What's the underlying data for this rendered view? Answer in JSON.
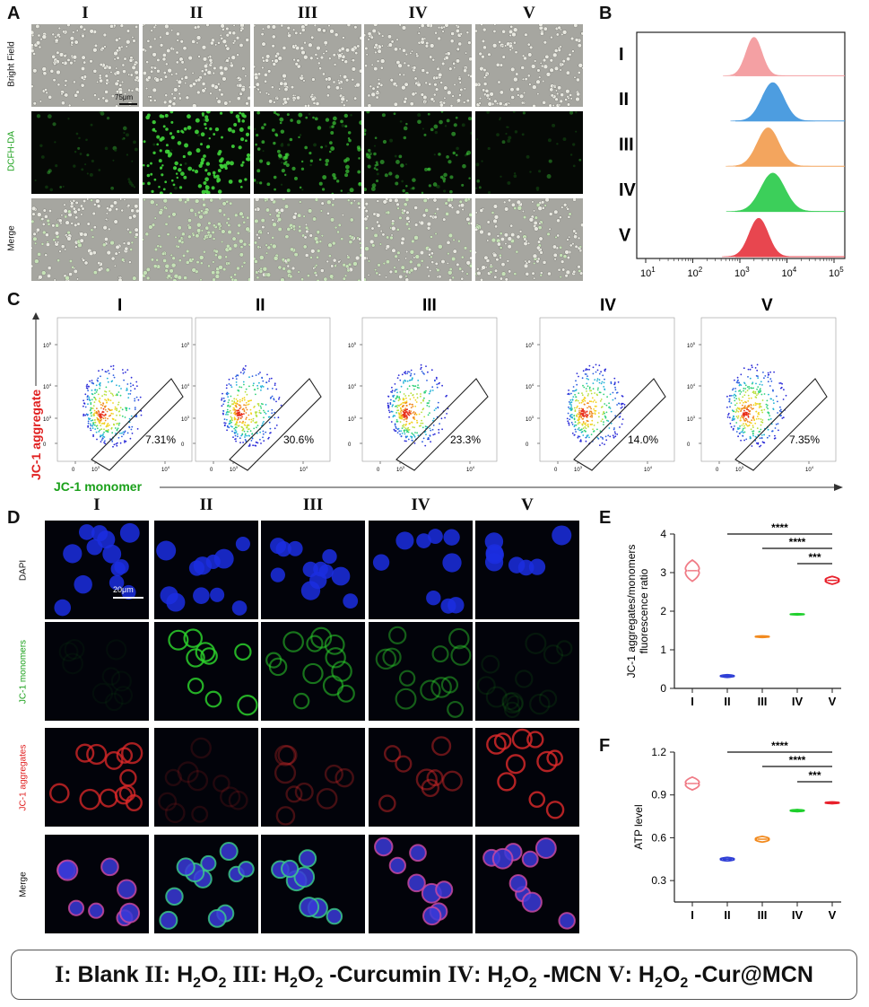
{
  "panels": {
    "a": {
      "letter": "A",
      "groups": [
        "I",
        "II",
        "III",
        "IV",
        "V"
      ],
      "rows": [
        "Bright Field",
        "DCFH-DA",
        "Merge"
      ],
      "row_colors": [
        "#111111",
        "#1aa01a",
        "#111111"
      ],
      "scale_bar": "75μm",
      "green_intensity": [
        0.06,
        0.95,
        0.55,
        0.35,
        0.08
      ]
    },
    "b": {
      "letter": "B",
      "groups": [
        "I",
        "II",
        "III",
        "IV",
        "V"
      ],
      "colors": [
        "#f4a0a3",
        "#4d9de0",
        "#f3a55e",
        "#3ccf5a",
        "#e8464f"
      ],
      "x_ticks": [
        "10^1",
        "10^2",
        "10^3",
        "10^4",
        "10^5"
      ]
    },
    "c": {
      "letter": "C",
      "groups": [
        "I",
        "II",
        "III",
        "IV",
        "V"
      ],
      "percentages": [
        "7.31%",
        "30.6%",
        "23.3%",
        "14.0%",
        "7.35%"
      ],
      "y_label": "JC-1 aggregate",
      "x_label": "JC-1 monomer",
      "y_ticks": [
        "10^5",
        "10^4",
        "10^3",
        "0"
      ],
      "x_ticks": [
        "0",
        "10^3",
        "10^4"
      ]
    },
    "d": {
      "letter": "D",
      "groups": [
        "I",
        "II",
        "III",
        "IV",
        "V"
      ],
      "rows": [
        "DAPI",
        "JC-1 monomers",
        "JC-1 aggregates",
        "Merge"
      ],
      "row_colors": [
        "#111111",
        "#1aa01a",
        "#e02020",
        "#111111"
      ],
      "scale_bar": "20μm",
      "green_intensity": [
        0.05,
        0.85,
        0.55,
        0.45,
        0.1
      ],
      "red_intensity": [
        0.75,
        0.15,
        0.3,
        0.45,
        0.8
      ]
    },
    "e": {
      "letter": "E",
      "y_label_line1": "JC-1 aggregates/monomers",
      "y_label_line2": "fluorescence ratio",
      "sig": [
        "****",
        "****",
        "***"
      ]
    },
    "f": {
      "letter": "F",
      "y_label": "ATP level",
      "sig": [
        "****",
        "****",
        "***"
      ]
    }
  },
  "chart_data": [
    {
      "panel": "E",
      "type": "violin",
      "categories": [
        "I",
        "II",
        "III",
        "IV",
        "V"
      ],
      "values": [
        3.05,
        0.32,
        1.34,
        1.92,
        2.8
      ],
      "spread": [
        0.55,
        0.07,
        0.04,
        0.03,
        0.2
      ],
      "colors": [
        "#f07b86",
        "#2f3fd6",
        "#f28a1e",
        "#1ecf2c",
        "#e8202b"
      ],
      "ylim": [
        0,
        4
      ],
      "yticks": [
        0,
        1,
        2,
        3,
        4
      ],
      "ylabel": "JC-1 aggregates/monomers fluorescence ratio",
      "comparisons": [
        {
          "from": "II",
          "to": "V",
          "label": "****"
        },
        {
          "from": "III",
          "to": "V",
          "label": "****"
        },
        {
          "from": "IV",
          "to": "V",
          "label": "***"
        }
      ]
    },
    {
      "panel": "F",
      "type": "violin",
      "categories": [
        "I",
        "II",
        "III",
        "IV",
        "V"
      ],
      "values": [
        0.98,
        0.45,
        0.59,
        0.79,
        0.845
      ],
      "spread": [
        0.09,
        0.025,
        0.04,
        0.015,
        0.012
      ],
      "colors": [
        "#f07b86",
        "#2f3fd6",
        "#f28a1e",
        "#1ecf2c",
        "#e8202b"
      ],
      "ylim": [
        0.15,
        1.2
      ],
      "yticks": [
        0.3,
        0.6,
        0.9,
        1.2
      ],
      "ytick_labels": [
        "0.3",
        "0.6",
        "0.9",
        "1.2"
      ],
      "ylabel": "ATP level",
      "comparisons": [
        {
          "from": "II",
          "to": "V",
          "label": "****"
        },
        {
          "from": "III",
          "to": "V",
          "label": "****"
        },
        {
          "from": "IV",
          "to": "V",
          "label": "***"
        }
      ]
    }
  ],
  "legend": {
    "items": [
      {
        "num": "I",
        "pre": ": Blank ",
        "sub": "",
        "post": ""
      },
      {
        "num": "II",
        "pre": ": H",
        "sub": "2",
        "mid": "O",
        "sub2": "2",
        "post": " "
      },
      {
        "num": "III",
        "pre": ": H",
        "sub": "2",
        "mid": "O",
        "sub2": "2",
        "post": " -Curcumin "
      },
      {
        "num": "IV",
        "pre": ": H",
        "sub": "2",
        "mid": "O",
        "sub2": "2",
        "post": " -MCN "
      },
      {
        "num": "V",
        "pre": ": H",
        "sub": "2",
        "mid": "O",
        "sub2": "2",
        "post": " -Cur@MCN"
      }
    ]
  }
}
